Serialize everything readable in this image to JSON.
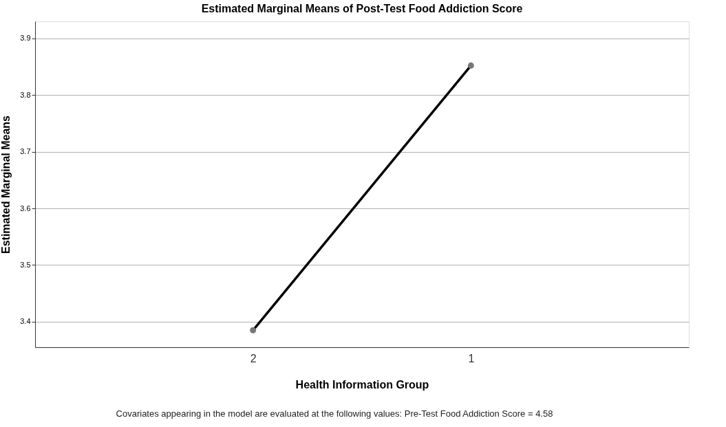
{
  "chart_data": {
    "type": "line",
    "title": "Estimated Marginal Means of Post-Test Food Addiction Score",
    "xlabel": "Health Information Group",
    "ylabel": "Estimated Marginal Means",
    "categories": [
      "2",
      "1"
    ],
    "series": [
      {
        "color": "#000000",
        "values": [
          3.385,
          3.852
        ]
      }
    ],
    "ylim": [
      3.355,
      3.93
    ],
    "yticks": [
      3.4,
      3.5,
      3.6,
      3.7,
      3.8,
      3.9
    ],
    "grid": "y",
    "marker": "circle",
    "line_style": "solid",
    "legend": false,
    "annotations": [
      "Covariates appearing in the model are evaluated at the following values: Pre-Test Food Addiction Score = 4.58"
    ]
  }
}
